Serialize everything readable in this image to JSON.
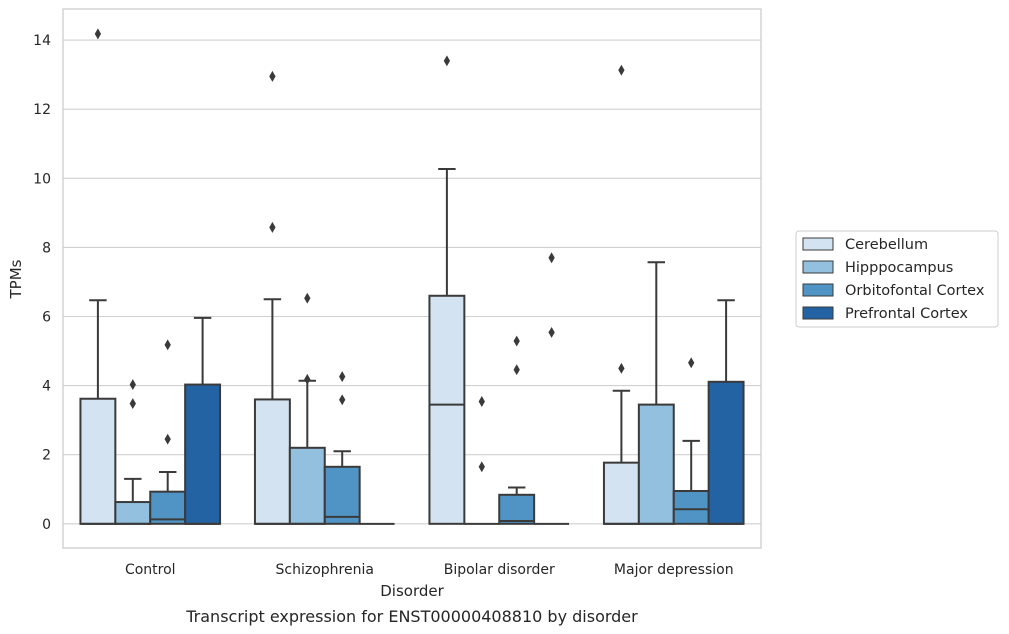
{
  "caption": "Transcript expression for ENST00000408810 by disorder",
  "chart_data": {
    "type": "box",
    "xlabel": "Disorder",
    "ylabel": "TPMs",
    "ylim": [
      -0.7,
      14.9
    ],
    "yticks": [
      0,
      2,
      4,
      6,
      8,
      10,
      12,
      14
    ],
    "categories": [
      "Control",
      "Schizophrenia",
      "Bipolar disorder",
      "Major depression"
    ],
    "grid": "horizontal",
    "legend": {
      "placement": "right",
      "entries": [
        "Cerebellum",
        "Hipppocampus",
        "Orbitofontal Cortex",
        "Prefrontal Cortex"
      ]
    },
    "colors": [
      "#d4e3f1",
      "#93c0de",
      "#4f94c4",
      "#2363a3"
    ],
    "series": [
      {
        "name": "Cerebellum",
        "boxes": [
          {
            "q1": 0,
            "median": 0,
            "q3": 3.62,
            "whisker_low": 0,
            "whisker_high": 6.47,
            "outliers": [
              14.18
            ]
          },
          {
            "q1": 0,
            "median": 0,
            "q3": 3.6,
            "whisker_low": 0,
            "whisker_high": 6.5,
            "outliers": [
              12.95,
              8.58
            ]
          },
          {
            "q1": 0,
            "median": 3.45,
            "q3": 6.6,
            "whisker_low": 0,
            "whisker_high": 10.27,
            "outliers": [
              13.4
            ]
          },
          {
            "q1": 0,
            "median": 0,
            "q3": 1.77,
            "whisker_low": 0,
            "whisker_high": 3.85,
            "outliers": [
              13.13,
              4.5
            ]
          }
        ]
      },
      {
        "name": "Hipppocampus",
        "boxes": [
          {
            "q1": 0,
            "median": 0,
            "q3": 0.63,
            "whisker_low": 0,
            "whisker_high": 1.3,
            "outliers": [
              4.03,
              3.48
            ]
          },
          {
            "q1": 0,
            "median": 0,
            "q3": 2.2,
            "whisker_low": 0,
            "whisker_high": 4.14,
            "outliers": [
              6.53,
              4.18
            ]
          },
          {
            "q1": 0,
            "median": 0,
            "q3": 0,
            "whisker_low": 0,
            "whisker_high": 0,
            "outliers": [
              3.54,
              1.65
            ]
          },
          {
            "q1": 0,
            "median": 0,
            "q3": 3.45,
            "whisker_low": 0,
            "whisker_high": 7.57,
            "outliers": []
          }
        ]
      },
      {
        "name": "Orbitofontal Cortex",
        "boxes": [
          {
            "q1": 0,
            "median": 0.13,
            "q3": 0.93,
            "whisker_low": 0,
            "whisker_high": 1.5,
            "outliers": [
              5.18,
              2.45
            ]
          },
          {
            "q1": 0,
            "median": 0.2,
            "q3": 1.65,
            "whisker_low": 0,
            "whisker_high": 2.1,
            "outliers": [
              4.26,
              3.59
            ]
          },
          {
            "q1": 0,
            "median": 0.08,
            "q3": 0.84,
            "whisker_low": 0,
            "whisker_high": 1.05,
            "outliers": [
              5.29,
              4.46
            ]
          },
          {
            "q1": 0,
            "median": 0.42,
            "q3": 0.95,
            "whisker_low": 0,
            "whisker_high": 2.4,
            "outliers": [
              4.66
            ]
          }
        ]
      },
      {
        "name": "Prefrontal Cortex",
        "boxes": [
          {
            "q1": 0,
            "median": 0,
            "q3": 4.03,
            "whisker_low": 0,
            "whisker_high": 5.96,
            "outliers": []
          },
          {
            "q1": 0,
            "median": 0,
            "q3": 0,
            "whisker_low": 0,
            "whisker_high": 0,
            "outliers": []
          },
          {
            "q1": 0,
            "median": 0,
            "q3": 0,
            "whisker_low": 0,
            "whisker_high": 0,
            "outliers": [
              7.7,
              5.54
            ]
          },
          {
            "q1": 0,
            "median": 0,
            "q3": 4.11,
            "whisker_low": 0,
            "whisker_high": 6.47,
            "outliers": []
          }
        ]
      }
    ]
  }
}
